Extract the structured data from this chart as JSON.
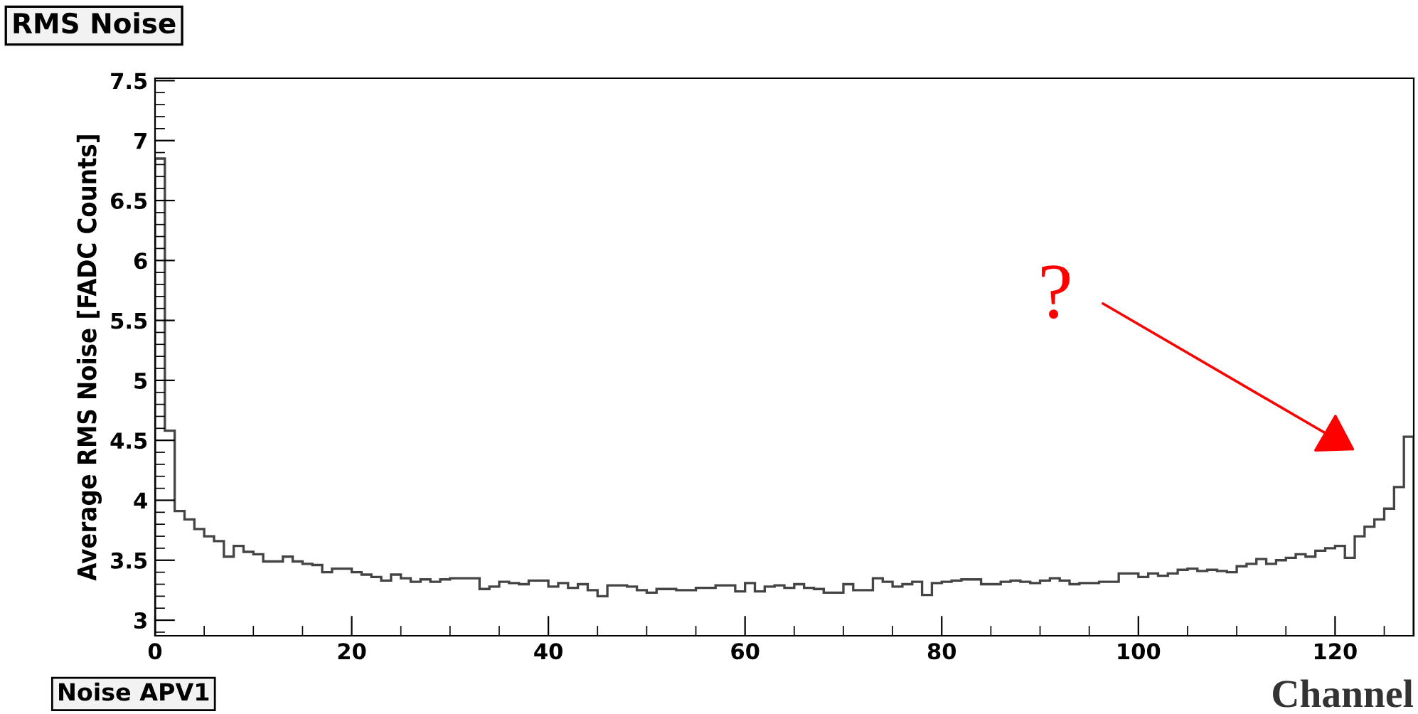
{
  "chart_data": {
    "type": "histogram",
    "title": "RMS Noise",
    "xlabel": "Channel",
    "ylabel": "Average RMS Noise [FADC Counts]",
    "bins": [
      0,
      1,
      2,
      3,
      4,
      5,
      6,
      7,
      8,
      9,
      10,
      11,
      12,
      13,
      14,
      15,
      16,
      17,
      18,
      19,
      20,
      21,
      22,
      23,
      24,
      25,
      26,
      27,
      28,
      29,
      30,
      31,
      32,
      33,
      34,
      35,
      36,
      37,
      38,
      39,
      40,
      41,
      42,
      43,
      44,
      45,
      46,
      47,
      48,
      49,
      50,
      51,
      52,
      53,
      54,
      55,
      56,
      57,
      58,
      59,
      60,
      61,
      62,
      63,
      64,
      65,
      66,
      67,
      68,
      69,
      70,
      71,
      72,
      73,
      74,
      75,
      76,
      77,
      78,
      79,
      80,
      81,
      82,
      83,
      84,
      85,
      86,
      87,
      88,
      89,
      90,
      91,
      92,
      93,
      94,
      95,
      96,
      97,
      98,
      99,
      100,
      101,
      102,
      103,
      104,
      105,
      106,
      107,
      108,
      109,
      110,
      111,
      112,
      113,
      114,
      115,
      116,
      117,
      118,
      119,
      120,
      121,
      122,
      123,
      124,
      125,
      126,
      127,
      128
    ],
    "values": [
      6.85,
      4.58,
      3.91,
      3.84,
      3.76,
      3.7,
      3.66,
      3.53,
      3.62,
      3.57,
      3.55,
      3.49,
      3.49,
      3.53,
      3.49,
      3.47,
      3.46,
      3.4,
      3.43,
      3.43,
      3.4,
      3.38,
      3.36,
      3.33,
      3.38,
      3.35,
      3.32,
      3.34,
      3.32,
      3.34,
      3.35,
      3.35,
      3.35,
      3.26,
      3.28,
      3.32,
      3.31,
      3.3,
      3.33,
      3.33,
      3.28,
      3.31,
      3.27,
      3.3,
      3.25,
      3.2,
      3.29,
      3.29,
      3.28,
      3.25,
      3.23,
      3.26,
      3.26,
      3.25,
      3.25,
      3.27,
      3.27,
      3.29,
      3.29,
      3.24,
      3.31,
      3.24,
      3.28,
      3.29,
      3.27,
      3.3,
      3.27,
      3.26,
      3.23,
      3.23,
      3.3,
      3.25,
      3.25,
      3.35,
      3.32,
      3.28,
      3.3,
      3.32,
      3.21,
      3.31,
      3.32,
      3.33,
      3.34,
      3.34,
      3.3,
      3.3,
      3.32,
      3.33,
      3.32,
      3.31,
      3.33,
      3.35,
      3.33,
      3.3,
      3.31,
      3.31,
      3.32,
      3.32,
      3.39,
      3.39,
      3.36,
      3.39,
      3.37,
      3.39,
      3.42,
      3.43,
      3.41,
      3.42,
      3.41,
      3.4,
      3.45,
      3.47,
      3.51,
      3.47,
      3.5,
      3.52,
      3.55,
      3.53,
      3.58,
      3.6,
      3.62,
      3.52,
      3.7,
      3.78,
      3.84,
      3.93,
      4.11,
      4.53
    ],
    "color": "#444444",
    "xlim": [
      0,
      128
    ],
    "ylim": [
      2.87,
      7.52
    ],
    "xticks": [
      0,
      20,
      40,
      60,
      80,
      100,
      120
    ],
    "yticks": [
      3,
      3.5,
      4,
      4.5,
      5,
      5.5,
      6,
      6.5,
      7,
      7.5
    ],
    "grid": false,
    "annotations": [
      "?",
      "Noise APV1"
    ]
  }
}
